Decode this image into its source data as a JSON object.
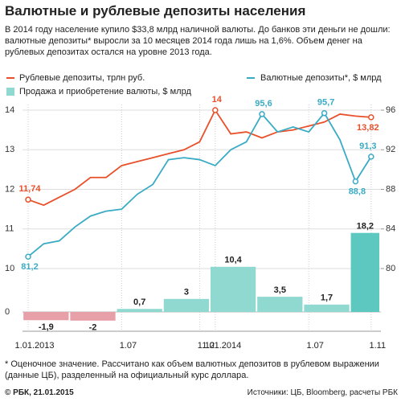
{
  "header": {
    "title": "Валютные и рублевые депозиты населения",
    "subtitle": "В 2014 году население купило $33,8 млрд наличной валюты. До банков эти деньги не дошли: валютные депозиты* выросли за 10 месяцев 2014 года лишь на 1,6%. Объем денег на рублевых депозитах остался на уровне 2013 года."
  },
  "chart_data": [
    {
      "type": "line",
      "categories": [
        "1.01.2013",
        null,
        null,
        null,
        null,
        null,
        "1.07",
        null,
        null,
        null,
        null,
        "1.12",
        "1.01.2014",
        null,
        null,
        null,
        null,
        null,
        "1.07",
        null,
        null,
        null,
        "1.11"
      ],
      "series": [
        {
          "name": "Рублевые депозиты, трлн руб.",
          "color": "#e8502a",
          "values": [
            11.74,
            11.6,
            11.8,
            12.0,
            12.3,
            12.3,
            12.6,
            12.7,
            12.8,
            12.9,
            13.0,
            13.2,
            14.0,
            13.4,
            13.45,
            13.3,
            13.45,
            13.5,
            13.6,
            13.7,
            13.9,
            13.85,
            13.82
          ],
          "value_labels": [
            "11,74",
            null,
            null,
            null,
            null,
            null,
            null,
            null,
            null,
            null,
            null,
            null,
            "14",
            null,
            null,
            null,
            null,
            null,
            null,
            null,
            null,
            null,
            "13,82"
          ]
        },
        {
          "name": "Валютные депозиты*, $ млрд",
          "color": "#3aabc4",
          "axis": "y2",
          "values": [
            81.2,
            82.5,
            82.8,
            84.2,
            85.3,
            85.8,
            86.0,
            87.5,
            88.5,
            91.0,
            91.2,
            91.0,
            90.4,
            92.0,
            92.8,
            95.6,
            93.8,
            94.3,
            93.8,
            95.7,
            93.0,
            88.8,
            91.3
          ],
          "value_labels": [
            "81,2",
            null,
            null,
            null,
            null,
            null,
            null,
            null,
            null,
            null,
            null,
            null,
            null,
            null,
            null,
            "95,6",
            null,
            null,
            null,
            "95,7",
            null,
            "88,8",
            "91,3"
          ]
        }
      ],
      "ylim": [
        10,
        14
      ],
      "yticks": [
        10,
        11,
        12,
        13,
        14
      ],
      "y2lim": [
        80,
        96
      ],
      "y2ticks": [
        80,
        84,
        88,
        92,
        96
      ],
      "grid": true
    },
    {
      "type": "bar",
      "series": [
        {
          "name": "Продажа и приобретение валюты, $ млрд",
          "color": "#8fd9d0",
          "colors": [
            "#e8a0a8",
            "#e8a0a8",
            "#8fd9d0",
            "#8fd9d0",
            "#8fd9d0",
            "#8fd9d0",
            "#8fd9d0",
            "#5cc8bf"
          ],
          "values": [
            -1.9,
            -2,
            0.7,
            3,
            10.4,
            3.5,
            1.7,
            18.2
          ],
          "value_labels": [
            "-1,9",
            "-2",
            "0,7",
            "3",
            "10,4",
            "3,5",
            "1,7",
            "18,2"
          ]
        }
      ],
      "ylim": [
        -3,
        27
      ],
      "yticks": [
        0
      ]
    }
  ],
  "footnote": "* Оценочное значение. Рассчитано как объем валютных депозитов в рублевом выражении (данные ЦБ), разделенный на официальный курс доллара.",
  "copyright": "© РБК, 21.01.2015",
  "source": "Источники: ЦБ, Bloomberg, расчеты РБК"
}
